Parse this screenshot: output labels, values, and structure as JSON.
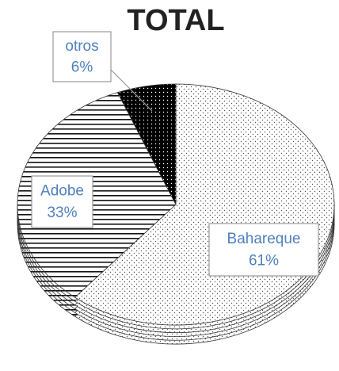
{
  "chart_data": {
    "type": "pie",
    "title": "TOTAL",
    "categories": [
      "Bahareque",
      "Adobe",
      "otros"
    ],
    "values": [
      61,
      33,
      6
    ],
    "value_labels": [
      "61%",
      "33%",
      "6%"
    ]
  }
}
